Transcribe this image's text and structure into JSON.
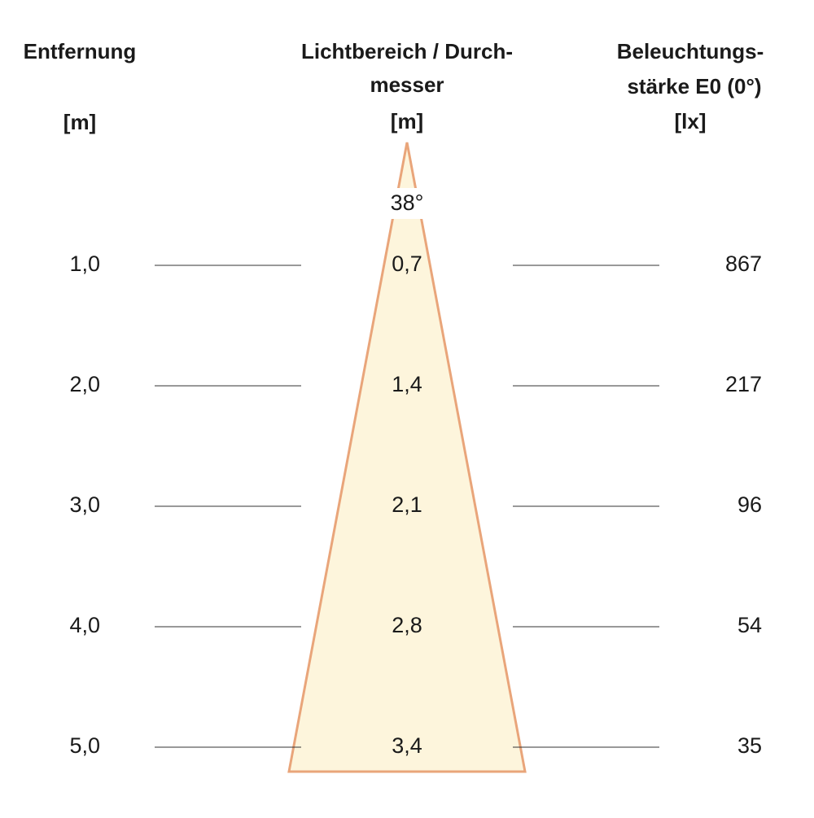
{
  "headers": {
    "distance": [
      "Entfernung",
      "[m]"
    ],
    "diameter": [
      "Lichtbereich / Durch-",
      "messer",
      "[m]"
    ],
    "illuminance": [
      "Beleuchtungs-",
      "stärke E0 (0°)",
      "[lx]"
    ]
  },
  "angle": "38°",
  "rows": [
    [
      "1,0",
      "0,7",
      "867"
    ],
    [
      "2,0",
      "1,4",
      "217"
    ],
    [
      "3,0",
      "2,1",
      "96"
    ],
    [
      "4,0",
      "2,8",
      "54"
    ],
    [
      "5,0",
      "3,4",
      "35"
    ]
  ]
}
